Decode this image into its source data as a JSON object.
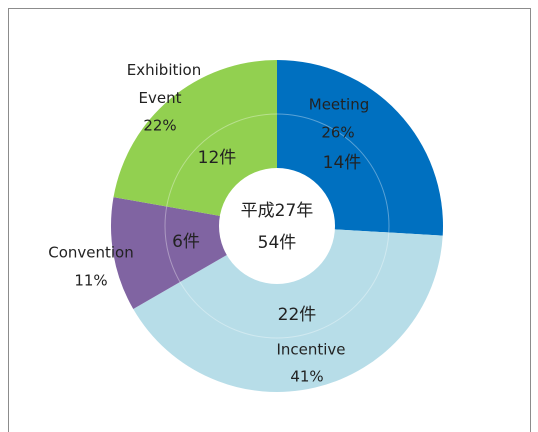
{
  "chart_data": {
    "type": "donut",
    "title": "平成27年",
    "subtitle": "54件",
    "categories": [
      "Meeting",
      "Incentive",
      "Convention",
      "Exhibition Event"
    ],
    "values": [
      14,
      22,
      6,
      12
    ],
    "value_labels": [
      "14件",
      "22件",
      "6件",
      "12件"
    ],
    "percent_values": [
      26,
      41,
      11,
      22
    ],
    "percent_labels": [
      "26%",
      "41%",
      "11%",
      "22%"
    ],
    "colors": [
      "#0070c0",
      "#b7dde8",
      "#8064a2",
      "#92d050"
    ]
  }
}
